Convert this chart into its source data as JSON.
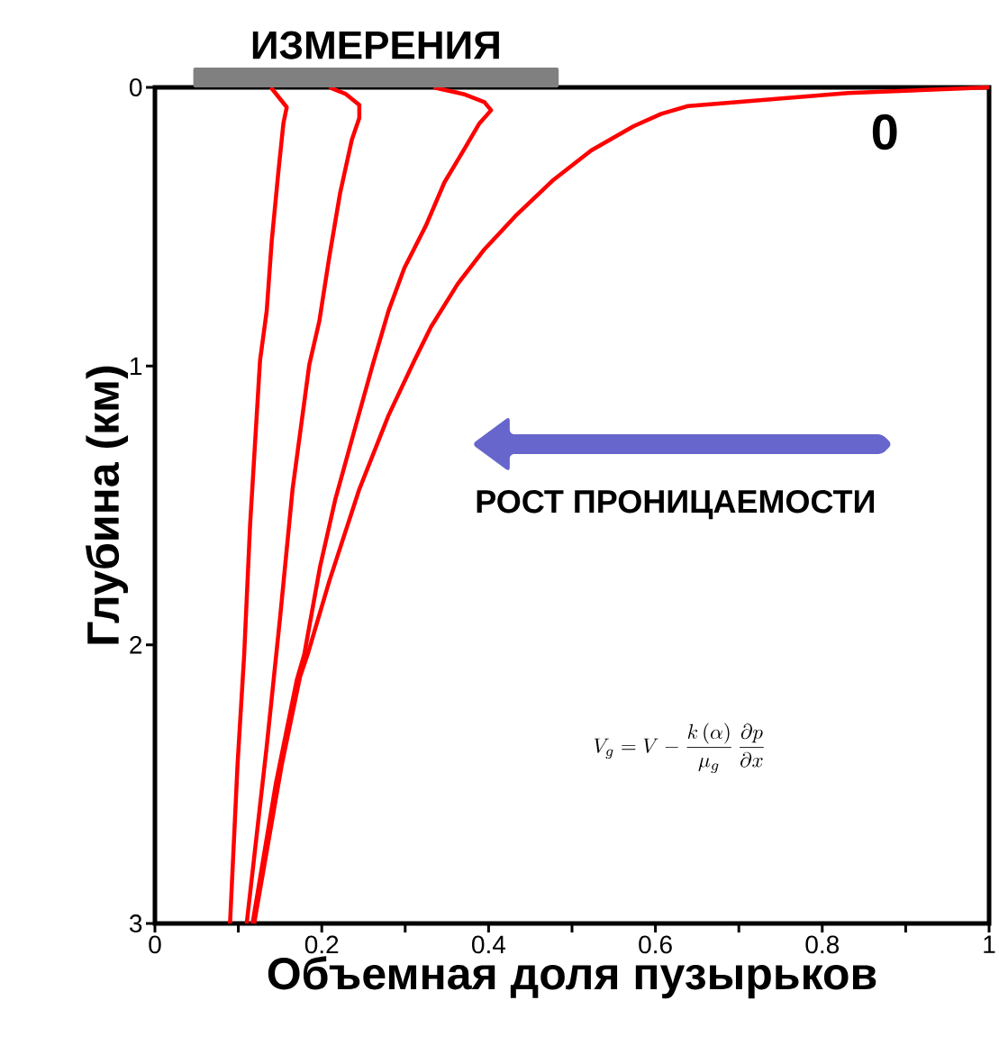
{
  "chart_data": {
    "type": "line",
    "xlabel": "Объемная доля пузырьков",
    "ylabel": "Глубина (км)",
    "xlim": [
      0,
      1
    ],
    "ylim": [
      3,
      0
    ],
    "xticks": [
      0,
      {
        "value": 0.1,
        "label": null
      },
      0.2,
      {
        "value": 0.3,
        "label": null
      },
      0.4,
      {
        "value": 0.5,
        "label": null
      },
      0.6,
      {
        "value": 0.7,
        "label": null
      },
      0.8,
      {
        "value": 0.9,
        "label": null
      },
      1
    ],
    "yticks": [
      0,
      1,
      2,
      3
    ],
    "grid": false,
    "marker": "none",
    "line_style": "solid",
    "title": "ИЗМЕРЕНИЯ",
    "annotations": [
      "0",
      "РОСТ ПРОНИЦАЕМОСТИ",
      "V_g = V - \\frac{k\\left(\\alpha\\right)}{\\mu_g}\\,\\frac{\\partial p}{\\partial x}"
    ],
    "series": [
      {
        "color": "#ff0000",
        "x": [
          0.139,
          0.158,
          0.154,
          0.148,
          0.14,
          0.134,
          0.126,
          0.114,
          0.107,
          0.099,
          0.09
        ],
        "values": [
          0,
          0.071,
          0.129,
          0.302,
          0.552,
          0.802,
          0.98,
          1.574,
          2.035,
          2.431,
          3.0
        ]
      },
      {
        "color": "#ff0000",
        "x": [
          0.209,
          0.229,
          0.245,
          0.245,
          0.236,
          0.222,
          0.209,
          0.197,
          0.185,
          0.165,
          0.15,
          0.134,
          0.11
        ],
        "values": [
          0,
          0.024,
          0.063,
          0.11,
          0.188,
          0.379,
          0.609,
          0.84,
          0.996,
          1.442,
          1.903,
          2.365,
          3.0
        ]
      },
      {
        "color": "#ff0000",
        "x": [
          0.334,
          0.37,
          0.395,
          0.403,
          0.389,
          0.37,
          0.347,
          0.325,
          0.299,
          0.28,
          0.261,
          0.238,
          0.216,
          0.198,
          0.179,
          0.17,
          0.145,
          0.117
        ],
        "values": [
          0,
          0.024,
          0.053,
          0.082,
          0.129,
          0.226,
          0.341,
          0.495,
          0.648,
          0.802,
          0.996,
          1.243,
          1.481,
          1.719,
          2.035,
          2.127,
          2.497,
          3.0
        ]
      },
      {
        "color": "#ff0000",
        "x": [
          1.0,
          0.831,
          0.639,
          0.607,
          0.574,
          0.523,
          0.478,
          0.434,
          0.395,
          0.363,
          0.331,
          0.311,
          0.28,
          0.245,
          0.209,
          0.183,
          0.174,
          0.152,
          0.119
        ],
        "values": [
          0,
          0.02,
          0.067,
          0.095,
          0.139,
          0.226,
          0.331,
          0.456,
          0.581,
          0.705,
          0.859,
          0.98,
          1.177,
          1.442,
          1.772,
          2.035,
          2.114,
          2.431,
          3.0
        ]
      }
    ]
  }
}
